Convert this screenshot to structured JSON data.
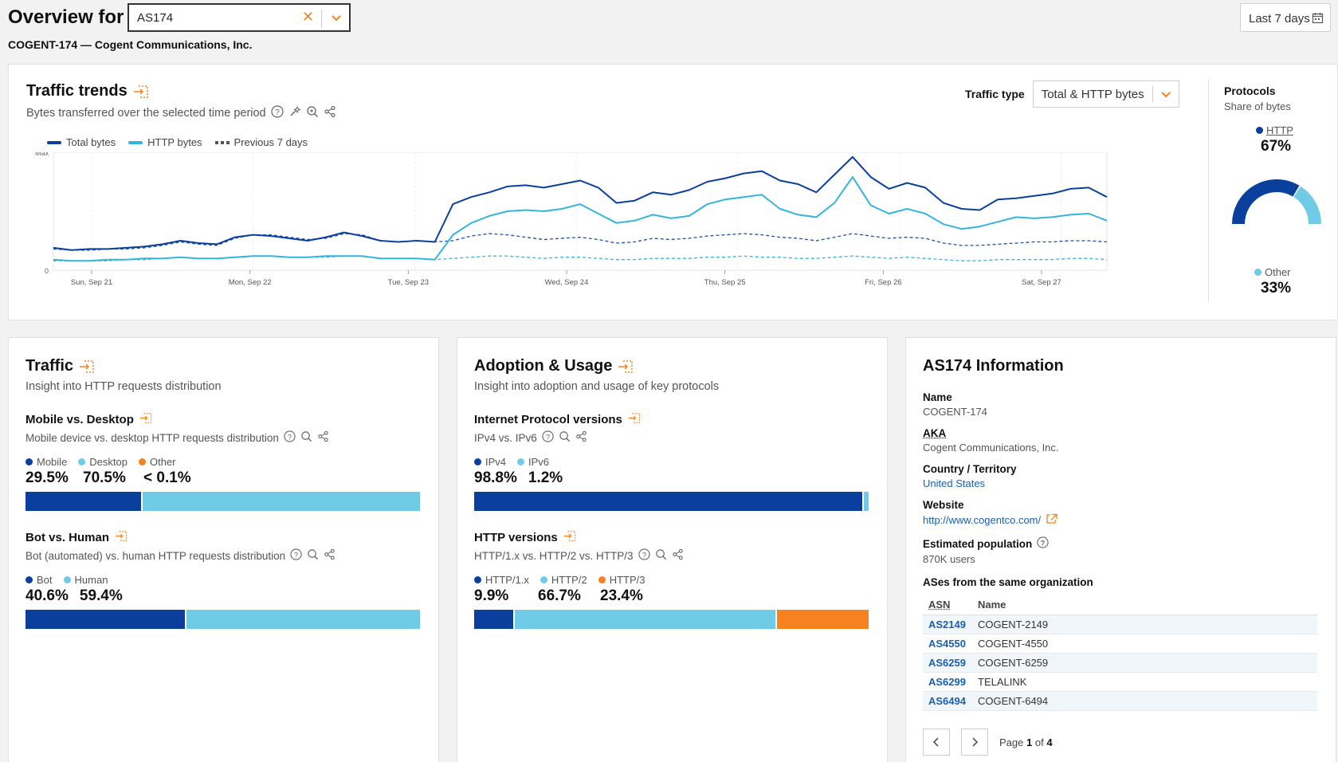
{
  "header": {
    "title": "Overview for",
    "asn_value": "AS174",
    "range_label": "Last 7 days",
    "subtitle": "COGENT-174 — Cogent Communications, Inc."
  },
  "trends": {
    "title": "Traffic trends",
    "description": "Bytes transferred over the selected time period",
    "traffic_type_label": "Traffic type",
    "traffic_type_value": "Total & HTTP bytes",
    "legend": [
      "Total bytes",
      "HTTP bytes",
      "Previous 7 days"
    ]
  },
  "chart_data": {
    "type": "line",
    "x_ticks": [
      "Sun, Sep 21",
      "Mon, Sep 22",
      "Tue, Sep 23",
      "Wed, Sep 24",
      "Thu, Sep 25",
      "Fri, Sep 26",
      "Sat, Sep 27"
    ],
    "y_ticks": [
      "Max",
      "0"
    ],
    "ylim": [
      0,
      1
    ],
    "series": [
      {
        "name": "Total bytes",
        "color": "#0a3f9e",
        "style": "solid",
        "values": [
          0.19,
          0.17,
          0.18,
          0.18,
          0.19,
          0.2,
          0.22,
          0.25,
          0.23,
          0.22,
          0.28,
          0.3,
          0.29,
          0.27,
          0.25,
          0.28,
          0.32,
          0.29,
          0.25,
          0.24,
          0.25,
          0.24,
          0.56,
          0.62,
          0.66,
          0.71,
          0.72,
          0.7,
          0.73,
          0.76,
          0.7,
          0.57,
          0.59,
          0.66,
          0.64,
          0.68,
          0.75,
          0.78,
          0.82,
          0.84,
          0.76,
          0.73,
          0.66,
          0.81,
          0.96,
          0.79,
          0.69,
          0.74,
          0.7,
          0.57,
          0.52,
          0.51,
          0.6,
          0.61,
          0.63,
          0.65,
          0.69,
          0.7,
          0.62
        ]
      },
      {
        "name": "HTTP bytes",
        "color": "#35b5dd",
        "style": "solid",
        "values": [
          0.09,
          0.08,
          0.08,
          0.09,
          0.09,
          0.1,
          0.1,
          0.11,
          0.1,
          0.1,
          0.11,
          0.12,
          0.12,
          0.11,
          0.11,
          0.12,
          0.12,
          0.12,
          0.1,
          0.1,
          0.1,
          0.09,
          0.3,
          0.4,
          0.46,
          0.5,
          0.51,
          0.5,
          0.52,
          0.56,
          0.48,
          0.4,
          0.42,
          0.47,
          0.44,
          0.46,
          0.56,
          0.6,
          0.62,
          0.64,
          0.52,
          0.47,
          0.45,
          0.57,
          0.79,
          0.55,
          0.48,
          0.52,
          0.48,
          0.39,
          0.35,
          0.37,
          0.41,
          0.45,
          0.44,
          0.45,
          0.47,
          0.48,
          0.42
        ]
      },
      {
        "name": "Previous 7 days",
        "color": "#1a4fb0",
        "style": "dashed",
        "values": [
          0.18,
          0.17,
          0.17,
          0.18,
          0.18,
          0.19,
          0.21,
          0.24,
          0.22,
          0.21,
          0.27,
          0.3,
          0.3,
          0.28,
          0.26,
          0.27,
          0.31,
          0.3,
          0.25,
          0.24,
          0.25,
          0.24,
          0.25,
          0.29,
          0.31,
          0.3,
          0.28,
          0.26,
          0.27,
          0.28,
          0.26,
          0.23,
          0.24,
          0.27,
          0.26,
          0.27,
          0.29,
          0.3,
          0.31,
          0.3,
          0.28,
          0.27,
          0.25,
          0.28,
          0.31,
          0.29,
          0.27,
          0.28,
          0.27,
          0.23,
          0.21,
          0.21,
          0.22,
          0.23,
          0.24,
          0.24,
          0.25,
          0.25,
          0.24
        ]
      },
      {
        "name": "Previous 7 days (HTTP)",
        "color": "#35b5dd",
        "style": "dashed",
        "values": [
          0.08,
          0.08,
          0.08,
          0.08,
          0.09,
          0.09,
          0.1,
          0.11,
          0.1,
          0.1,
          0.11,
          0.12,
          0.12,
          0.11,
          0.11,
          0.11,
          0.12,
          0.12,
          0.1,
          0.1,
          0.1,
          0.09,
          0.1,
          0.11,
          0.12,
          0.12,
          0.11,
          0.1,
          0.11,
          0.11,
          0.1,
          0.09,
          0.09,
          0.1,
          0.1,
          0.1,
          0.11,
          0.11,
          0.12,
          0.11,
          0.11,
          0.1,
          0.1,
          0.11,
          0.12,
          0.11,
          0.1,
          0.11,
          0.1,
          0.09,
          0.08,
          0.08,
          0.09,
          0.09,
          0.09,
          0.09,
          0.1,
          0.1,
          0.09
        ]
      }
    ]
  },
  "protocols": {
    "title": "Protocols",
    "subtitle": "Share of bytes",
    "http_label": "HTTP",
    "http_value": "67%",
    "other_label": "Other",
    "other_value": "33%",
    "http_share": 0.67,
    "colors": {
      "http": "#0a3f9e",
      "other": "#6fcbe6"
    }
  },
  "traffic": {
    "title": "Traffic",
    "description": "Insight into HTTP requests distribution",
    "mobile_desktop": {
      "title": "Mobile vs. Desktop",
      "description": "Mobile device vs. desktop HTTP requests distribution",
      "labels": [
        "Mobile",
        "Desktop",
        "Other"
      ],
      "values": [
        "29.5%",
        "70.5%",
        "< 0.1%"
      ],
      "shares": [
        29.5,
        70.5,
        0
      ]
    },
    "bot_human": {
      "title": "Bot vs. Human",
      "description": "Bot (automated) vs. human HTTP requests distribution",
      "labels": [
        "Bot",
        "Human"
      ],
      "values": [
        "40.6%",
        "59.4%"
      ],
      "shares": [
        40.6,
        59.4
      ]
    }
  },
  "adoption": {
    "title": "Adoption & Usage",
    "description": "Insight into adoption and usage of key protocols",
    "ip_versions": {
      "title": "Internet Protocol versions",
      "description": "IPv4 vs. IPv6",
      "labels": [
        "IPv4",
        "IPv6"
      ],
      "values": [
        "98.8%",
        "1.2%"
      ],
      "shares": [
        98.8,
        1.2
      ]
    },
    "http_versions": {
      "title": "HTTP versions",
      "description": "HTTP/1.x vs. HTTP/2 vs. HTTP/3",
      "labels": [
        "HTTP/1.x",
        "HTTP/2",
        "HTTP/3"
      ],
      "values": [
        "9.9%",
        "66.7%",
        "23.4%"
      ],
      "shares": [
        9.9,
        66.7,
        23.4
      ]
    }
  },
  "info": {
    "title": "AS174 Information",
    "name_label": "Name",
    "name_value": "COGENT-174",
    "aka_label": "AKA",
    "aka_value": "Cogent Communications, Inc.",
    "country_label": "Country / Territory",
    "country_value": "United States",
    "website_label": "Website",
    "website_value": "http://www.cogentco.com/",
    "population_label": "Estimated population",
    "population_value": "870K users",
    "same_org_label": "ASes from the same organization",
    "col_asn": "ASN",
    "col_name": "Name",
    "rows": [
      {
        "asn": "AS2149",
        "name": "COGENT-2149"
      },
      {
        "asn": "AS4550",
        "name": "COGENT-4550"
      },
      {
        "asn": "AS6259",
        "name": "COGENT-6259"
      },
      {
        "asn": "AS6299",
        "name": "TELALINK"
      },
      {
        "asn": "AS6494",
        "name": "COGENT-6494"
      }
    ],
    "page_prefix": "Page",
    "page_current": "1",
    "page_of": "of",
    "page_total": "4"
  },
  "colors": {
    "dark_blue": "#0a3f9e",
    "light_blue": "#6fcbe6",
    "orange": "#f6821f"
  }
}
